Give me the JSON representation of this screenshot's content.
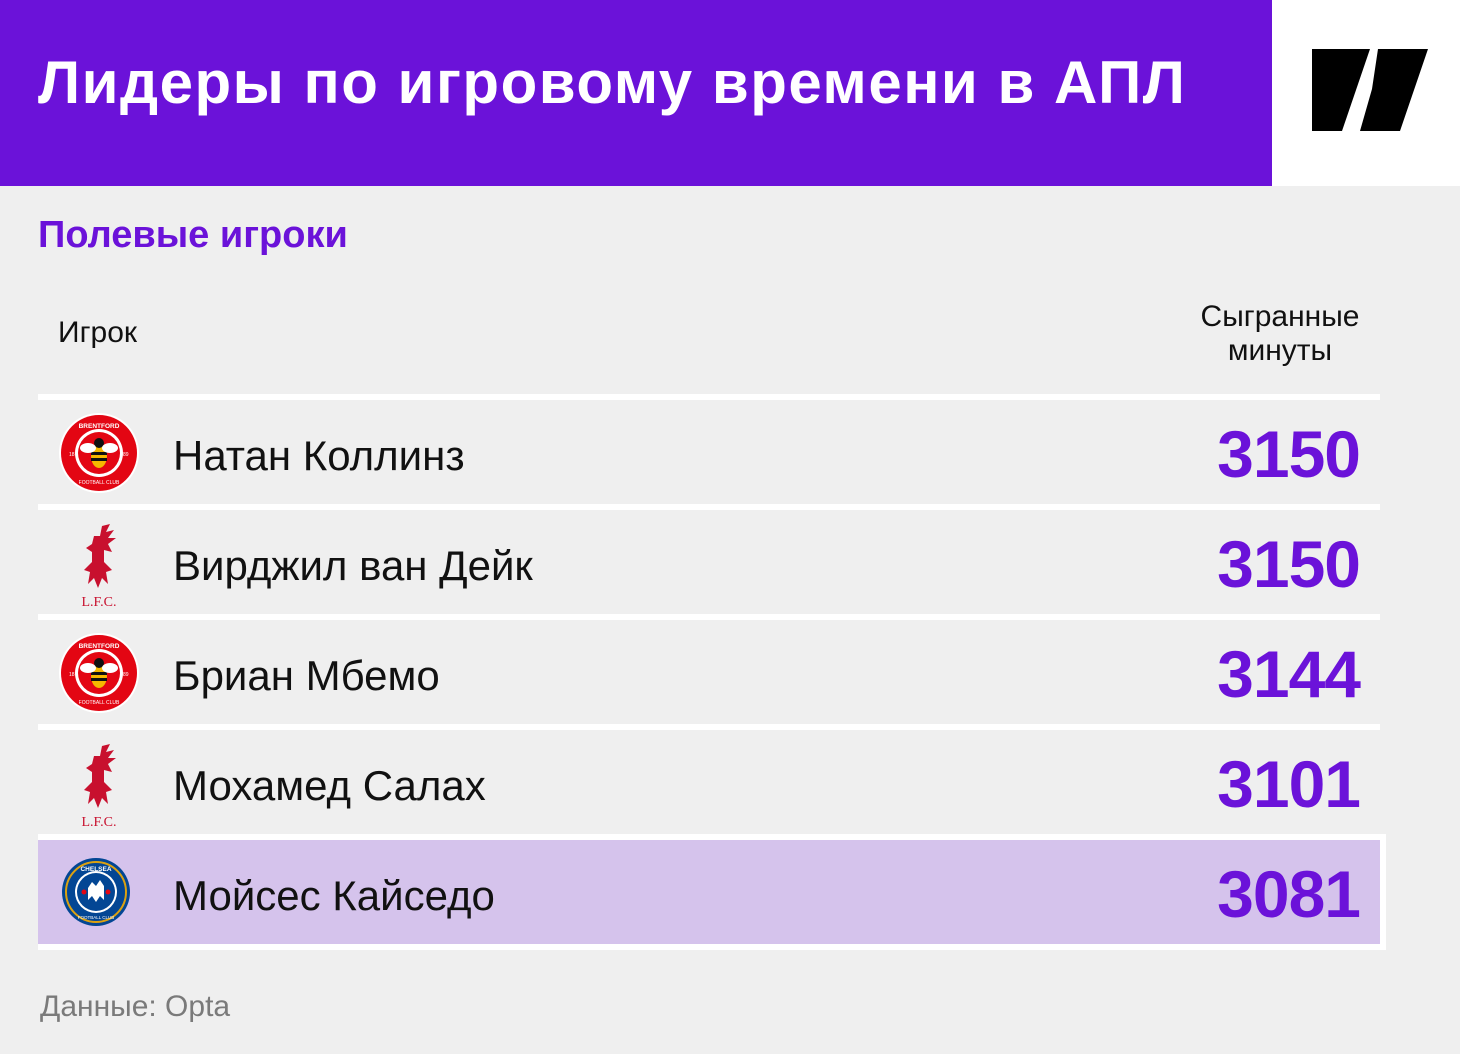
{
  "header": {
    "title": "Лидеры по игровому времени в АПЛ",
    "accent_color": "#6b12d9",
    "logo_icon": "publisher-logo-icon"
  },
  "section": {
    "subtitle": "Полевые игроки"
  },
  "columns": {
    "player": "Игрок",
    "minutes_line1": "Сыгранные",
    "minutes_line2": "минуты"
  },
  "rows": [
    {
      "club_icon": "brentford-crest-icon",
      "crest_text_top": "BRENTFORD",
      "crest_text_bottom": "FOOTBALL CLUB",
      "crest_year_left": "18",
      "crest_year_right": "89",
      "name": "Натан Коллинз",
      "minutes": "3150",
      "highlighted": false
    },
    {
      "club_icon": "liverpool-crest-icon",
      "crest_text": "L.F.C.",
      "name": "Вирджил ван Дейк",
      "minutes": "3150",
      "highlighted": false
    },
    {
      "club_icon": "brentford-crest-icon",
      "crest_text_top": "BRENTFORD",
      "crest_text_bottom": "FOOTBALL CLUB",
      "crest_year_left": "18",
      "crest_year_right": "89",
      "name": "Бриан Мбемо",
      "minutes": "3144",
      "highlighted": false
    },
    {
      "club_icon": "liverpool-crest-icon",
      "crest_text": "L.F.C.",
      "name": "Мохамед Салах",
      "minutes": "3101",
      "highlighted": false
    },
    {
      "club_icon": "chelsea-crest-icon",
      "crest_text_top": "CHELSEA",
      "crest_text_bottom": "FOOTBALL CLUB",
      "name": "Мойсес Кайседо",
      "minutes": "3081",
      "highlighted": true,
      "highlight_color": "#d5c3ec"
    }
  ],
  "footer": {
    "source": "Данные: Opta"
  }
}
